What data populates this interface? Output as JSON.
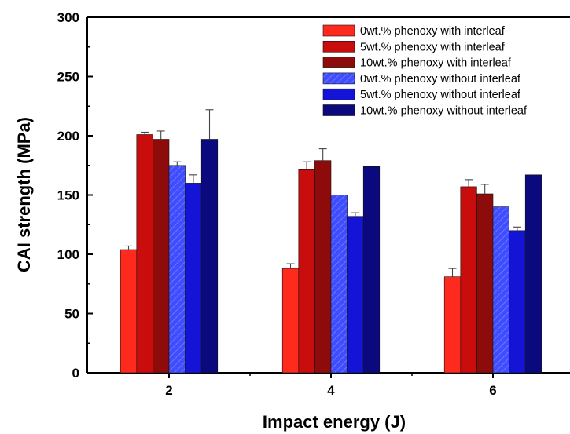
{
  "chart_data": {
    "type": "bar",
    "categories": [
      "2",
      "4",
      "6"
    ],
    "xlabel": "Impact energy (J)",
    "ylabel": "CAI strength (MPa)",
    "ylim": [
      0,
      300
    ],
    "yticks": [
      0,
      50,
      100,
      150,
      200,
      250,
      300
    ],
    "grid": false,
    "legend_position": "top-right",
    "series": [
      {
        "name": "0wt.% phenoxy with interleaf",
        "values": [
          104,
          88,
          81
        ],
        "errors": [
          3,
          4,
          7
        ],
        "color": "#ff2a1e",
        "pattern": "solid"
      },
      {
        "name": "5wt.% phenoxy with interleaf",
        "values": [
          201,
          172,
          157
        ],
        "errors": [
          2,
          6,
          6
        ],
        "color": "#c90c0c",
        "pattern": "solid"
      },
      {
        "name": "10wt.% phenoxy with interleaf",
        "values": [
          197,
          179,
          151
        ],
        "errors": [
          7,
          10,
          8
        ],
        "color": "#8e0b0b",
        "pattern": "solid"
      },
      {
        "name": "0wt.% phenoxy without interleaf",
        "values": [
          175,
          150,
          140
        ],
        "errors": [
          3,
          0,
          0
        ],
        "color": "#3f4dff",
        "pattern": "hatched"
      },
      {
        "name": "5wt.% phenoxy without interleaf",
        "values": [
          160,
          132,
          120
        ],
        "errors": [
          7,
          3,
          3
        ],
        "color": "#1414d6",
        "pattern": "solid"
      },
      {
        "name": "10wt.% phenoxy without interleaf",
        "values": [
          197,
          174,
          167
        ],
        "errors": [
          25,
          0,
          0
        ],
        "color": "#0a0a7e",
        "pattern": "solid"
      }
    ]
  }
}
